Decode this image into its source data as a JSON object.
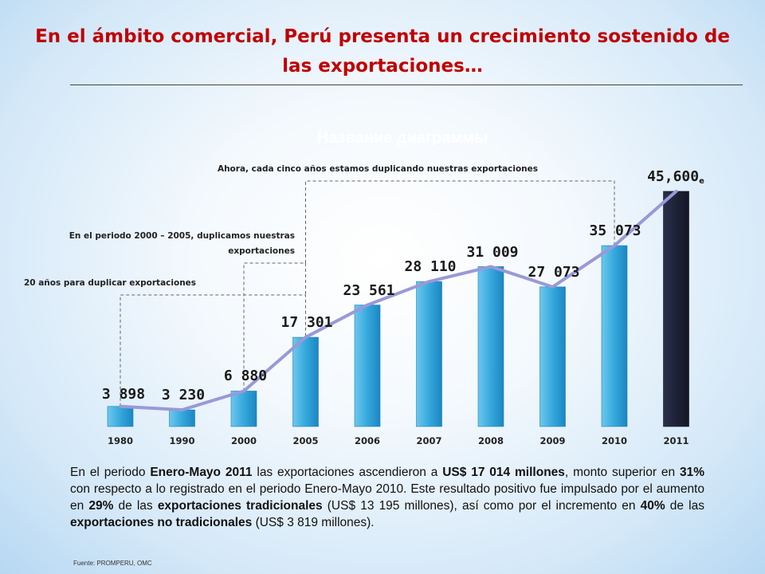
{
  "slide": {
    "title": "En el ámbito comercial, Perú presenta un crecimiento sostenido de las exportaciones…",
    "ghost_title": "Название диаграммы",
    "source": "Fuente: PROMPERU, OMC"
  },
  "paragraph": {
    "p1": "En el periodo ",
    "b1": "Enero-Mayo 2011",
    "p2": " las exportaciones ascendieron a ",
    "b2": "US$ 17 014 millones",
    "p3": ", monto superior en ",
    "b3": "31%",
    "p4": " con respecto a lo registrado en el periodo Enero-Mayo 2010. Este resultado positivo fue impulsado por el aumento en ",
    "b4": "29%",
    "p5": " de las ",
    "b5": "exportaciones tradicionales",
    "p6": " (US$ 13 195 millones), así como por el incremento en ",
    "b6": "40%",
    "p7": " de las ",
    "b7": "exportaciones no tradicionales",
    "p8": " (US$ 3 819 millones)."
  },
  "chart_data": {
    "type": "bar",
    "title": "",
    "xlabel": "",
    "ylabel": "",
    "categories": [
      "1980",
      "1990",
      "2000",
      "2005",
      "2006",
      "2007",
      "2008",
      "2009",
      "2010",
      "2011"
    ],
    "values": [
      3898,
      3230,
      6880,
      17301,
      23561,
      28110,
      31009,
      27073,
      35073,
      45600
    ],
    "labels": [
      "3 898",
      "3 230",
      "6 880",
      "17 301",
      "23 561",
      "28 110",
      "31 009",
      "27 073",
      "35 073",
      "45,600"
    ],
    "estimate_suffix": "e",
    "ylim": [
      0,
      47000
    ],
    "grid": false,
    "trend_line": true,
    "colors": {
      "bar": "#35a8dc",
      "bar_estimate": "#1b1e32",
      "line": "#9999d8",
      "annotation": "#666666"
    },
    "annotations": [
      {
        "text": "20 años para duplicar exportaciones",
        "from": "1980",
        "to": "2005"
      },
      {
        "text_lines": [
          "En el periodo 2000 – 2005, duplicamos nuestras",
          "exportaciones"
        ],
        "from": "2000",
        "to": "2005"
      },
      {
        "text": "Ahora, cada cinco años estamos duplicando nuestras exportaciones",
        "from": "2005",
        "to": "2010"
      }
    ]
  }
}
